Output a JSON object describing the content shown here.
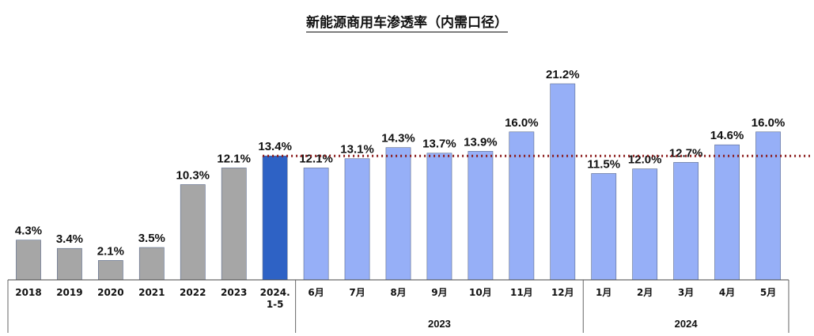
{
  "chart_data": {
    "type": "bar",
    "title": "新能源商用车渗透率（内需口径）",
    "categories": [
      "2018",
      "2019",
      "2020",
      "2021",
      "2022",
      "2023",
      "2024.\n1-5",
      "6月",
      "7月",
      "8月",
      "9月",
      "10月",
      "11月",
      "12月",
      "1月",
      "2月",
      "3月",
      "4月",
      "5月"
    ],
    "values": [
      4.3,
      3.4,
      2.1,
      3.5,
      10.3,
      12.1,
      13.4,
      12.1,
      13.1,
      14.3,
      13.7,
      13.9,
      16.0,
      21.2,
      11.5,
      12.0,
      12.7,
      14.6,
      16.0
    ],
    "value_labels": [
      "4.3%",
      "3.4%",
      "2.1%",
      "3.5%",
      "10.3%",
      "12.1%",
      "13.4%",
      "12.1%",
      "13.1%",
      "14.3%",
      "13.7%",
      "13.9%",
      "16.0%",
      "21.2%",
      "11.5%",
      "12.0%",
      "12.7%",
      "14.6%",
      "16.0%"
    ],
    "bar_colors": [
      "#a6a6a6",
      "#a6a6a6",
      "#a6a6a6",
      "#a6a6a6",
      "#a6a6a6",
      "#a6a6a6",
      "#2e62c5",
      "#96aff7",
      "#96aff7",
      "#96aff7",
      "#96aff7",
      "#96aff7",
      "#96aff7",
      "#96aff7",
      "#96aff7",
      "#96aff7",
      "#96aff7",
      "#96aff7",
      "#96aff7"
    ],
    "groups": [
      {
        "label": "2023",
        "from": 7,
        "to": 13
      },
      {
        "label": "2024",
        "from": 14,
        "to": 18
      }
    ],
    "reference_line": {
      "value": 13.4,
      "style": "dotted",
      "color": "#8b1a1a"
    },
    "ylim": [
      0,
      23
    ],
    "grid": false,
    "xlabel": "",
    "ylabel": ""
  }
}
